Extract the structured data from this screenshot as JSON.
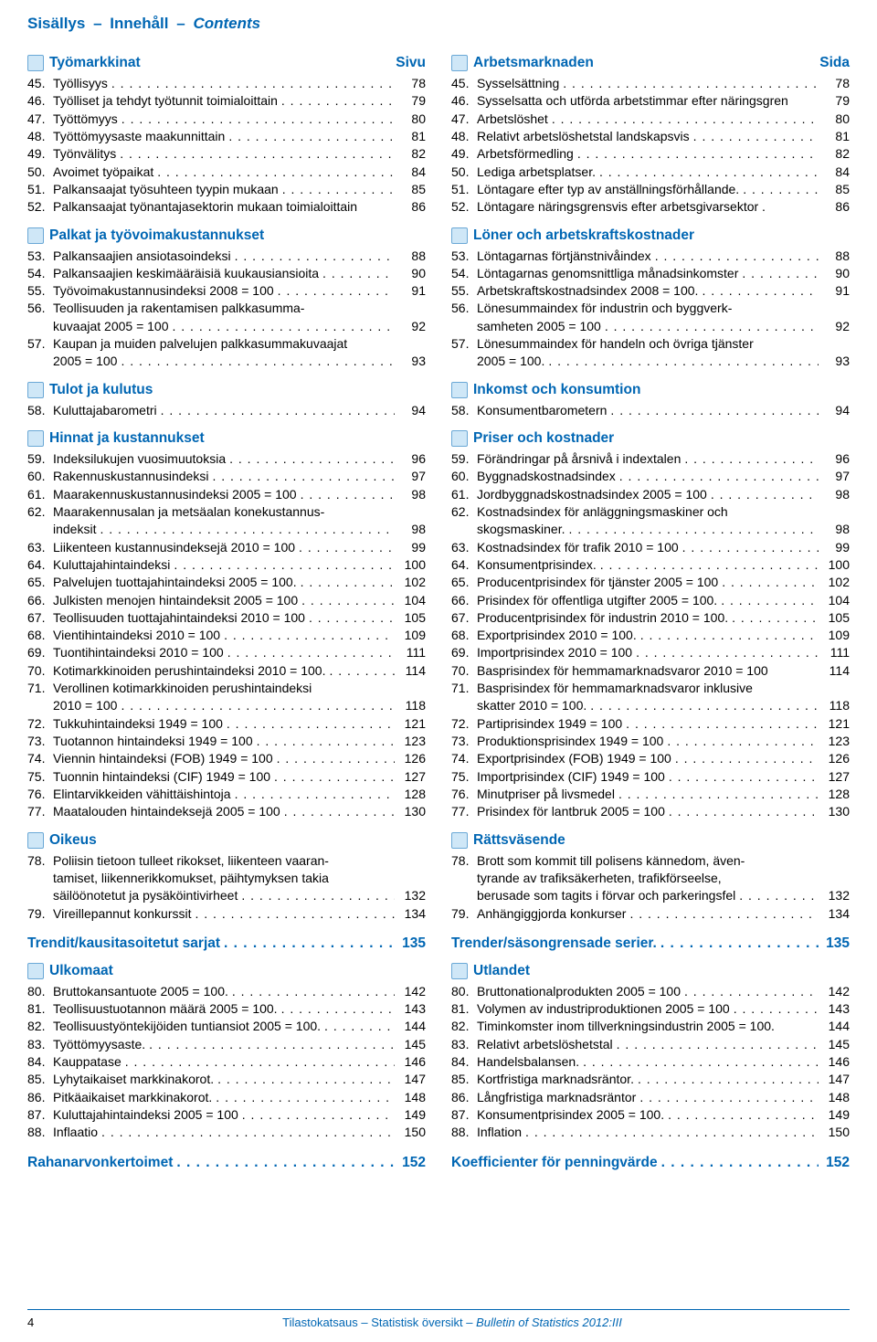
{
  "header": {
    "fi": "Sisällys",
    "sv": "Innehåll",
    "en": "Contents",
    "sep": "–"
  },
  "colors": {
    "accent": "#0066b3",
    "text": "#000000",
    "bg": "#ffffff",
    "icon_fill": "#cfe7f7",
    "icon_border": "#6aa8d6"
  },
  "left": {
    "sections": [
      {
        "title": "Työmarkkinat",
        "page_header": "Sivu",
        "items": [
          {
            "n": "45.",
            "t": "Työllisyys",
            "p": "78"
          },
          {
            "n": "46.",
            "t": "Työlliset ja tehdyt työtunnit toimialoittain",
            "p": "79"
          },
          {
            "n": "47.",
            "t": "Työttömyys",
            "p": "80"
          },
          {
            "n": "48.",
            "t": "Työttömyysaste maakunnittain",
            "p": "81"
          },
          {
            "n": "49.",
            "t": "Työnvälitys",
            "p": "82"
          },
          {
            "n": "50.",
            "t": "Avoimet työpaikat",
            "p": "84"
          },
          {
            "n": "51.",
            "t": "Palkansaajat työsuhteen tyypin mukaan",
            "p": "85"
          },
          {
            "n": "52.",
            "t": "Palkansaajat työnantajasektorin mukaan toimialoittain",
            "p": "86",
            "nodots": true
          }
        ]
      },
      {
        "title": "Palkat ja työvoimakustannukset",
        "items": [
          {
            "n": "53.",
            "t": "Palkansaajien ansiotasoindeksi",
            "p": "88"
          },
          {
            "n": "54.",
            "t": "Palkansaajien keskimääräisiä kuukausiansioita",
            "p": "90"
          },
          {
            "n": "55.",
            "t": "Työvoimakustannusindeksi 2008 = 100",
            "p": "91"
          },
          {
            "n": "56.",
            "t": "Teollisuuden ja rakentamisen palkkasumma-",
            "p": "",
            "nodots": true
          },
          {
            "n": "",
            "t": "kuvaajat 2005 = 100",
            "p": "92",
            "cont": true
          },
          {
            "n": "57.",
            "t": "Kaupan ja muiden palvelujen palkkasummakuvaajat",
            "p": "",
            "nodots": true
          },
          {
            "n": "",
            "t": "2005 = 100",
            "p": "93",
            "cont": true
          }
        ]
      },
      {
        "title": "Tulot ja kulutus",
        "items": [
          {
            "n": "58.",
            "t": "Kuluttajabarometri",
            "p": "94"
          }
        ]
      },
      {
        "title": "Hinnat ja kustannukset",
        "items": [
          {
            "n": "59.",
            "t": "Indeksilukujen vuosimuutoksia",
            "p": "96"
          },
          {
            "n": "60.",
            "t": "Rakennuskustannusindeksi",
            "p": "97"
          },
          {
            "n": "61.",
            "t": "Maarakennuskustannusindeksi 2005 = 100",
            "p": "98"
          },
          {
            "n": "62.",
            "t": "Maarakennusalan ja metsäalan konekustannus-",
            "p": "",
            "nodots": true
          },
          {
            "n": "",
            "t": "indeksit",
            "p": "98",
            "cont": true
          },
          {
            "n": "63.",
            "t": "Liikenteen kustannusindeksejä 2010 = 100",
            "p": "99"
          },
          {
            "n": "64.",
            "t": "Kuluttajahintaindeksi",
            "p": "100"
          },
          {
            "n": "65.",
            "t": "Palvelujen tuottajahintaindeksi 2005 = 100.",
            "p": "102"
          },
          {
            "n": "66.",
            "t": "Julkisten menojen hintaindeksit 2005 = 100",
            "p": "104"
          },
          {
            "n": "67.",
            "t": "Teollisuuden tuottajahintaindeksi 2010 = 100",
            "p": "105"
          },
          {
            "n": "68.",
            "t": "Vientihintaindeksi 2010 = 100",
            "p": "109"
          },
          {
            "n": "69.",
            "t": "Tuontihintaindeksi 2010 = 100",
            "p": "111"
          },
          {
            "n": "70.",
            "t": "Kotimarkkinoiden perushintaindeksi 2010 = 100.",
            "p": "114"
          },
          {
            "n": "71.",
            "t": "Verollinen kotimarkkinoiden perushintaindeksi",
            "p": "",
            "nodots": true
          },
          {
            "n": "",
            "t": "2010 = 100",
            "p": "118",
            "cont": true
          },
          {
            "n": "72.",
            "t": "Tukkuhintaindeksi 1949 = 100",
            "p": "121"
          },
          {
            "n": "73.",
            "t": "Tuotannon hintaindeksi 1949 = 100",
            "p": "123"
          },
          {
            "n": "74.",
            "t": "Viennin hintaindeksi (FOB) 1949 = 100",
            "p": "126"
          },
          {
            "n": "75.",
            "t": "Tuonnin hintaindeksi (CIF) 1949 = 100",
            "p": "127"
          },
          {
            "n": "76.",
            "t": "Elintarvikkeiden vähittäishintoja",
            "p": "128"
          },
          {
            "n": "77.",
            "t": "Maatalouden hintaindeksejä 2005 = 100",
            "p": "130"
          }
        ]
      },
      {
        "title": "Oikeus",
        "items": [
          {
            "n": "78.",
            "t": "Poliisin tietoon tulleet rikokset, liikenteen vaaran-",
            "p": "",
            "nodots": true
          },
          {
            "n": "",
            "t": "tamiset, liikennerikkomukset, päihtymyksen takia",
            "p": "",
            "nodots": true,
            "cont": true
          },
          {
            "n": "",
            "t": "säilöönotetut ja pysäköintivirheet",
            "p": "132",
            "cont": true
          },
          {
            "n": "79.",
            "t": "Vireillepannut konkurssit",
            "p": "134"
          }
        ]
      }
    ],
    "series": {
      "t": "Trendit/kausitasoitetut sarjat",
      "p": "135"
    },
    "foreign": {
      "title": "Ulkomaat",
      "items": [
        {
          "n": "80.",
          "t": "Bruttokansantuote 2005 = 100.",
          "p": "142"
        },
        {
          "n": "81.",
          "t": "Teollisuustuotannon määrä 2005 = 100.",
          "p": "143"
        },
        {
          "n": "82.",
          "t": "Teollisuustyöntekijöiden tuntiansiot 2005 = 100.",
          "p": "144"
        },
        {
          "n": "83.",
          "t": "Työttömyysaste.",
          "p": "145"
        },
        {
          "n": "84.",
          "t": "Kauppatase",
          "p": "146"
        },
        {
          "n": "85.",
          "t": "Lyhytaikaiset markkinakorot.",
          "p": "147"
        },
        {
          "n": "86.",
          "t": "Pitkäaikaiset markkinakorot.",
          "p": "148"
        },
        {
          "n": "87.",
          "t": "Kuluttajahintaindeksi 2005 = 100",
          "p": "149"
        },
        {
          "n": "88.",
          "t": "Inflaatio",
          "p": "150"
        }
      ]
    },
    "last": {
      "t": "Rahanarvonkertoimet",
      "p": "152"
    }
  },
  "right": {
    "sections": [
      {
        "title": "Arbetsmarknaden",
        "page_header": "Sida",
        "items": [
          {
            "n": "45.",
            "t": "Sysselsättning",
            "p": "78"
          },
          {
            "n": "46.",
            "t": "Sysselsatta och utförda arbetstimmar efter näringsgren",
            "p": "79",
            "nodots": true
          },
          {
            "n": "47.",
            "t": "Arbetslöshet",
            "p": "80"
          },
          {
            "n": "48.",
            "t": "Relativt arbetslöshetstal landskapsvis",
            "p": "81"
          },
          {
            "n": "49.",
            "t": "Arbetsförmedling",
            "p": "82"
          },
          {
            "n": "50.",
            "t": "Lediga arbetsplatser.",
            "p": "84"
          },
          {
            "n": "51.",
            "t": "Löntagare efter typ av anställningsförhållande.",
            "p": "85"
          },
          {
            "n": "52.",
            "t": "Löntagare näringsgrensvis efter arbetsgivarsektor .",
            "p": "86",
            "nodots": true
          }
        ]
      },
      {
        "title": "Löner och arbetskraftskostnader",
        "items": [
          {
            "n": "53.",
            "t": "Löntagarnas förtjänstnivåindex",
            "p": "88"
          },
          {
            "n": "54.",
            "t": "Löntagarnas genomsnittliga månadsinkomster",
            "p": "90"
          },
          {
            "n": "55.",
            "t": "Arbetskraftskostnadsindex 2008 = 100.",
            "p": "91"
          },
          {
            "n": "56.",
            "t": "Lönesummaindex för industrin och byggverk-",
            "p": "",
            "nodots": true
          },
          {
            "n": "",
            "t": "samheten 2005 = 100",
            "p": "92",
            "cont": true
          },
          {
            "n": "57.",
            "t": "Lönesummaindex för handeln och övriga tjänster",
            "p": "",
            "nodots": true
          },
          {
            "n": "",
            "t": "2005 = 100.",
            "p": "93",
            "cont": true
          }
        ]
      },
      {
        "title": "Inkomst och konsumtion",
        "items": [
          {
            "n": "58.",
            "t": "Konsumentbarometern",
            "p": "94"
          }
        ]
      },
      {
        "title": "Priser och kostnader",
        "items": [
          {
            "n": "59.",
            "t": "Förändringar på årsnivå i indextalen",
            "p": "96"
          },
          {
            "n": "60.",
            "t": "Byggnadskostnadsindex",
            "p": "97"
          },
          {
            "n": "61.",
            "t": "Jordbyggnadskostnadsindex 2005 = 100",
            "p": "98"
          },
          {
            "n": "62.",
            "t": "Kostnadsindex för anläggningsmaskiner och",
            "p": "",
            "nodots": true
          },
          {
            "n": "",
            "t": "skogsmaskiner.",
            "p": "98",
            "cont": true
          },
          {
            "n": "63.",
            "t": "Kostnadsindex för trafik 2010 = 100",
            "p": "99"
          },
          {
            "n": "64.",
            "t": "Konsumentprisindex.",
            "p": "100"
          },
          {
            "n": "65.",
            "t": "Producentprisindex för tjänster 2005 = 100",
            "p": "102"
          },
          {
            "n": "66.",
            "t": "Prisindex för offentliga utgifter 2005 = 100.",
            "p": "104"
          },
          {
            "n": "67.",
            "t": "Producentprisindex för industrin 2010 = 100.",
            "p": "105"
          },
          {
            "n": "68.",
            "t": "Exportprisindex 2010 = 100.",
            "p": "109"
          },
          {
            "n": "69.",
            "t": "Importprisindex 2010 = 100",
            "p": "111"
          },
          {
            "n": "70.",
            "t": "Basprisindex för hemmamarknadsvaror 2010 = 100",
            "p": "114",
            "nodots": true
          },
          {
            "n": "71.",
            "t": "Basprisindex för hemmamarknadsvaror inklusive",
            "p": "",
            "nodots": true
          },
          {
            "n": "",
            "t": "skatter 2010 = 100.",
            "p": "118",
            "cont": true
          },
          {
            "n": "72.",
            "t": "Partiprisindex 1949 = 100",
            "p": "121"
          },
          {
            "n": "73.",
            "t": "Produktionsprisindex 1949 = 100",
            "p": "123"
          },
          {
            "n": "74.",
            "t": "Exportprisindex (FOB) 1949 = 100",
            "p": "126"
          },
          {
            "n": "75.",
            "t": "Importprisindex (CIF) 1949 = 100",
            "p": "127"
          },
          {
            "n": "76.",
            "t": "Minutpriser på livsmedel",
            "p": "128"
          },
          {
            "n": "77.",
            "t": "Prisindex för lantbruk 2005 = 100",
            "p": "130"
          }
        ]
      },
      {
        "title": "Rättsväsende",
        "items": [
          {
            "n": "78.",
            "t": "Brott som kommit till polisens kännedom, även-",
            "p": "",
            "nodots": true
          },
          {
            "n": "",
            "t": "tyrande av trafiksäkerheten, trafikförseelse,",
            "p": "",
            "nodots": true,
            "cont": true
          },
          {
            "n": "",
            "t": "berusade som tagits i förvar och parkeringsfel",
            "p": "132",
            "cont": true
          },
          {
            "n": "79.",
            "t": "Anhängiggjorda konkurser",
            "p": "134"
          }
        ]
      }
    ],
    "series": {
      "t": "Trender/säsongrensade serier.",
      "p": "135"
    },
    "foreign": {
      "title": "Utlandet",
      "items": [
        {
          "n": "80.",
          "t": "Bruttonationalprodukten 2005 = 100",
          "p": "142"
        },
        {
          "n": "81.",
          "t": "Volymen av industriproduktionen 2005 = 100",
          "p": "143"
        },
        {
          "n": "82.",
          "t": "Timinkomster inom tillverkningsindustrin 2005 = 100.",
          "p": "144",
          "nodots": true
        },
        {
          "n": "83.",
          "t": "Relativt arbetslöshetstal",
          "p": "145"
        },
        {
          "n": "84.",
          "t": "Handelsbalansen.",
          "p": "146"
        },
        {
          "n": "85.",
          "t": "Kortfristiga marknadsräntor.",
          "p": "147"
        },
        {
          "n": "86.",
          "t": "Långfristiga marknadsräntor",
          "p": "148"
        },
        {
          "n": "87.",
          "t": "Konsumentprisindex 2005 = 100.",
          "p": "149"
        },
        {
          "n": "88.",
          "t": "Inflation",
          "p": "150"
        }
      ]
    },
    "last": {
      "t": "Koefficienter för penningvärde",
      "p": "152"
    }
  },
  "footer": {
    "pagenum": "4",
    "fi": "Tilastokatsaus",
    "sv": "Statistisk översikt",
    "en": "Bulletin of Statistics 2012:III",
    "sep": "–"
  }
}
